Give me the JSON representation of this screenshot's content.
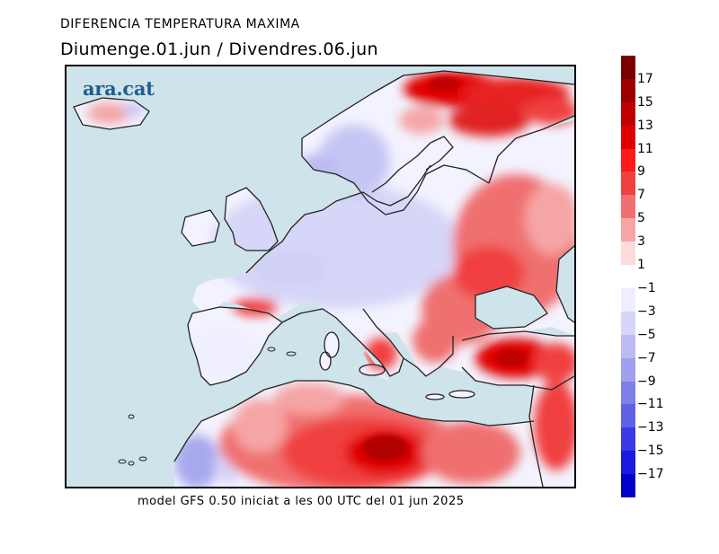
{
  "title": "DIFERENCIA TEMPERATURA MAXIMA",
  "subtitle": "Diumenge.01.jun / Divendres.06.jun",
  "logo": "ara.cat",
  "footer": "model GFS 0.50 iniciat a les 00 UTC del 01 jun 2025",
  "colorbar": {
    "labels": [
      "17",
      "15",
      "13",
      "11",
      "9",
      "7",
      "5",
      "3",
      "1",
      "−1",
      "−3",
      "−5",
      "−7",
      "−9",
      "−11",
      "−13",
      "−15",
      "−17"
    ],
    "colors": [
      "#7a0000",
      "#9e0000",
      "#c00000",
      "#e00000",
      "#ff1a1a",
      "#f04040",
      "#f07070",
      "#f5a5a5",
      "#fbdcdc",
      "#ffffff",
      "#eeeeff",
      "#d6d6f8",
      "#bcbcf2",
      "#a0a0ee",
      "#7f7fea",
      "#6060e8",
      "#3a3ae6",
      "#1a1ae0",
      "#0000c8"
    ]
  }
}
